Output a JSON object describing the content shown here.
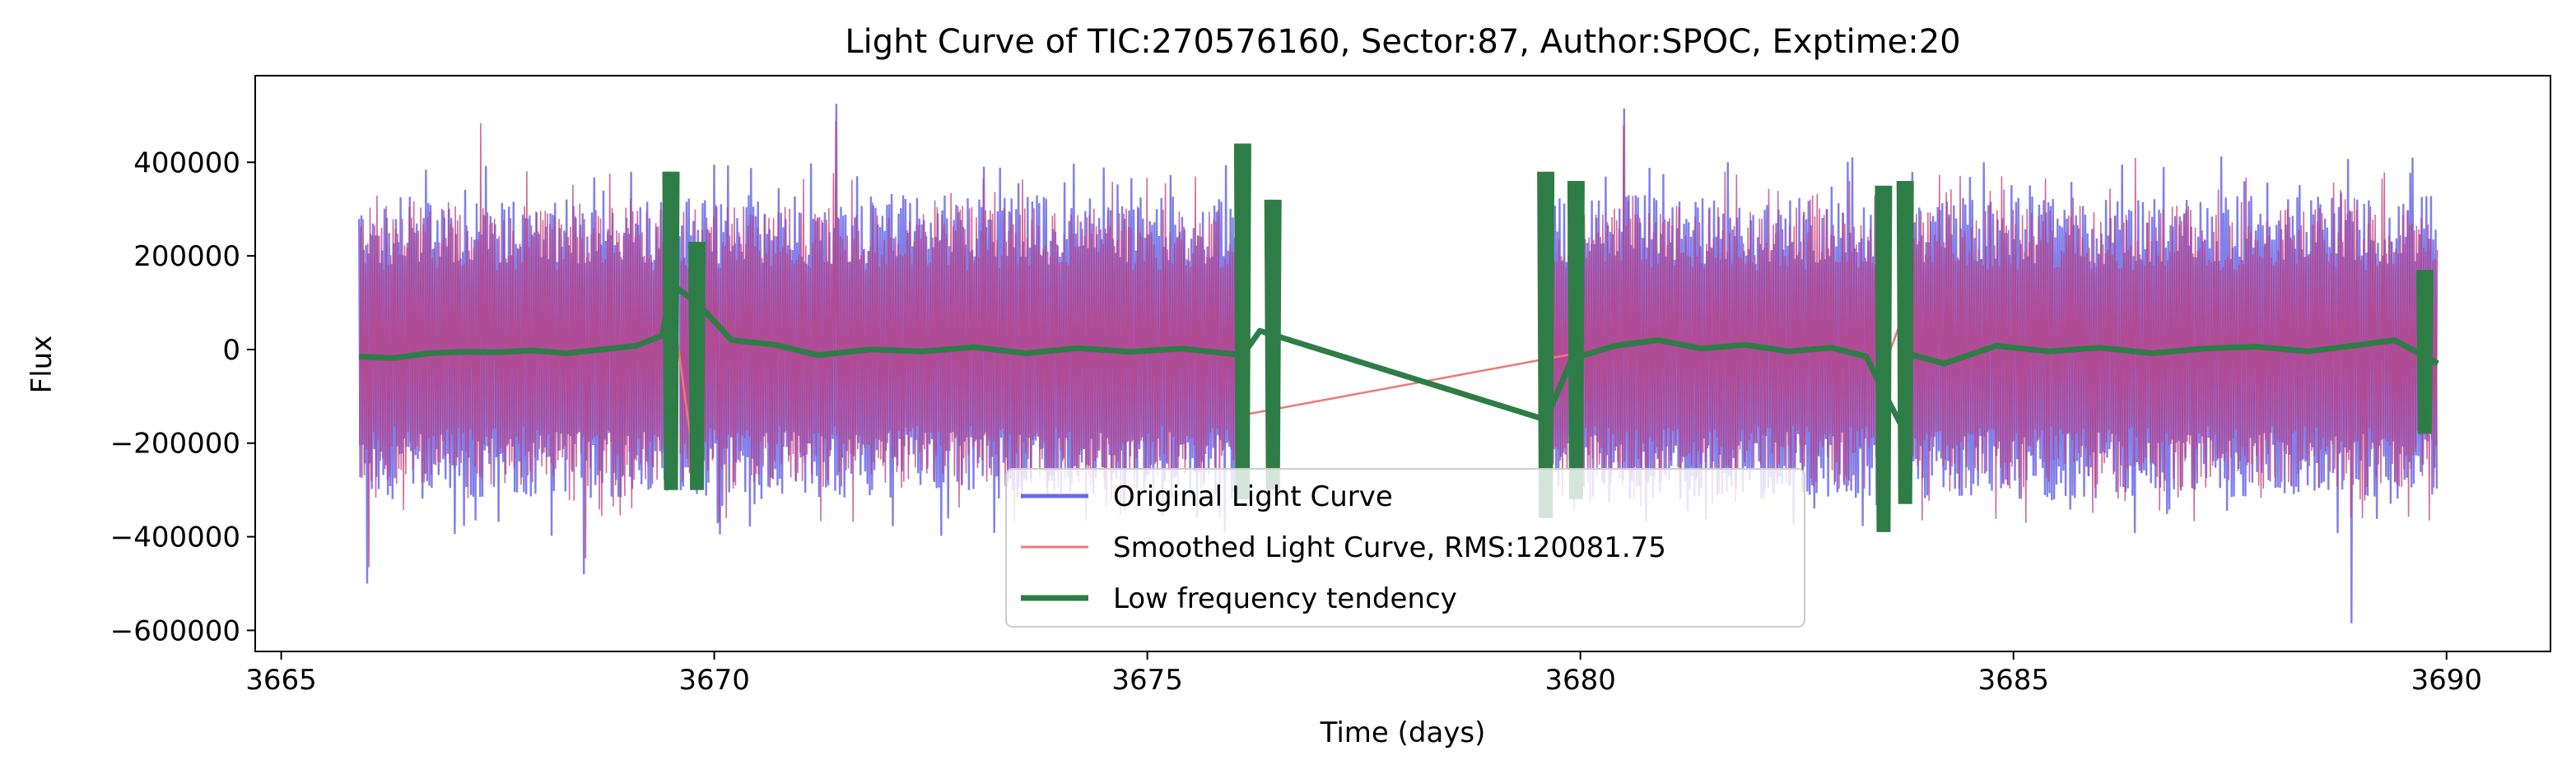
{
  "chart_data": {
    "type": "line",
    "title": "Light Curve of TIC:270576160, Sector:87, Author:SPOC, Exptime:20",
    "xlabel": "Time (days)",
    "ylabel": "Flux",
    "xlim": [
      3664.7,
      3691.2
    ],
    "ylim": [
      -645000,
      585000
    ],
    "xticks": [
      3665,
      3670,
      3675,
      3680,
      3685,
      3690
    ],
    "yticks": [
      -600000,
      -400000,
      -200000,
      0,
      200000,
      400000
    ],
    "xtick_labels": [
      "3665",
      "3670",
      "3675",
      "3680",
      "3685",
      "3690"
    ],
    "ytick_labels": [
      "−600000",
      "−400000",
      "−200000",
      "0",
      "200000",
      "400000"
    ],
    "grid": false,
    "legend_position": "lower-center",
    "data_segments": [
      [
        3665.9,
        3669.5
      ],
      [
        3669.6,
        3676.1
      ],
      [
        3679.6,
        3683.5
      ],
      [
        3683.7,
        3689.9
      ]
    ],
    "series": [
      {
        "name": "Original Light Curve",
        "color": "#6a6ae6",
        "style": "band",
        "typical_range": [
          -320000,
          330000
        ],
        "extremes": [
          [
            3666.0,
            -500000
          ],
          [
            3667.3,
            520000
          ],
          [
            3668.5,
            -480000
          ],
          [
            3671.4,
            525000
          ],
          [
            3680.5,
            515000
          ],
          [
            3686.4,
            440000
          ],
          [
            3688.9,
            -585000
          ]
        ]
      },
      {
        "name": "Smoothed Light Curve, RMS:120081.75",
        "color": "#f07878",
        "style": "thin",
        "bridges": [
          [
            [
              3669.5,
              120000
            ],
            [
              3669.8,
              -290000
            ]
          ],
          [
            [
              3676.1,
              -140000
            ],
            [
              3679.9,
              -10000
            ]
          ],
          [
            [
              3683.5,
              -40000
            ],
            [
              3683.8,
              110000
            ]
          ]
        ]
      },
      {
        "name": "Low frequency tendency",
        "color": "#2e7d46",
        "style": "thick",
        "points": [
          [
            3665.9,
            -15000
          ],
          [
            3666.3,
            -18000
          ],
          [
            3666.7,
            -8000
          ],
          [
            3667.1,
            -5000
          ],
          [
            3667.5,
            -6000
          ],
          [
            3667.9,
            -2000
          ],
          [
            3668.3,
            -8000
          ],
          [
            3668.7,
            0
          ],
          [
            3669.1,
            8000
          ],
          [
            3669.4,
            30000
          ],
          [
            3669.5,
            140000
          ],
          [
            3669.8,
            100000
          ],
          [
            3670.2,
            20000
          ],
          [
            3670.7,
            10000
          ],
          [
            3671.2,
            -12000
          ],
          [
            3671.8,
            0
          ],
          [
            3672.4,
            -4000
          ],
          [
            3673.0,
            5000
          ],
          [
            3673.6,
            -8000
          ],
          [
            3674.2,
            3000
          ],
          [
            3674.8,
            -5000
          ],
          [
            3675.4,
            2000
          ],
          [
            3676.1,
            -12000
          ],
          [
            3676.3,
            40000
          ],
          [
            3679.6,
            -150000
          ],
          [
            3679.9,
            -20000
          ],
          [
            3680.4,
            8000
          ],
          [
            3680.9,
            20000
          ],
          [
            3681.4,
            2000
          ],
          [
            3681.9,
            10000
          ],
          [
            3682.4,
            -4000
          ],
          [
            3682.9,
            4000
          ],
          [
            3683.3,
            -15000
          ],
          [
            3683.5,
            -90000
          ],
          [
            3683.7,
            -160000
          ],
          [
            3683.8,
            -10000
          ],
          [
            3684.2,
            -30000
          ],
          [
            3684.8,
            8000
          ],
          [
            3685.4,
            -4000
          ],
          [
            3686.0,
            4000
          ],
          [
            3686.6,
            -8000
          ],
          [
            3687.2,
            2000
          ],
          [
            3687.8,
            6000
          ],
          [
            3688.4,
            -4000
          ],
          [
            3689.0,
            10000
          ],
          [
            3689.4,
            20000
          ],
          [
            3689.7,
            -10000
          ],
          [
            3689.9,
            -30000
          ]
        ],
        "spikes": [
          [
            3669.5,
            -300000,
            380000
          ],
          [
            3669.8,
            -300000,
            230000
          ],
          [
            3676.1,
            -320000,
            440000
          ],
          [
            3676.45,
            -300000,
            320000
          ],
          [
            3679.6,
            -360000,
            380000
          ],
          [
            3679.95,
            -320000,
            360000
          ],
          [
            3683.5,
            -390000,
            350000
          ],
          [
            3683.75,
            -330000,
            360000
          ],
          [
            3689.75,
            -180000,
            170000
          ]
        ]
      }
    ]
  }
}
